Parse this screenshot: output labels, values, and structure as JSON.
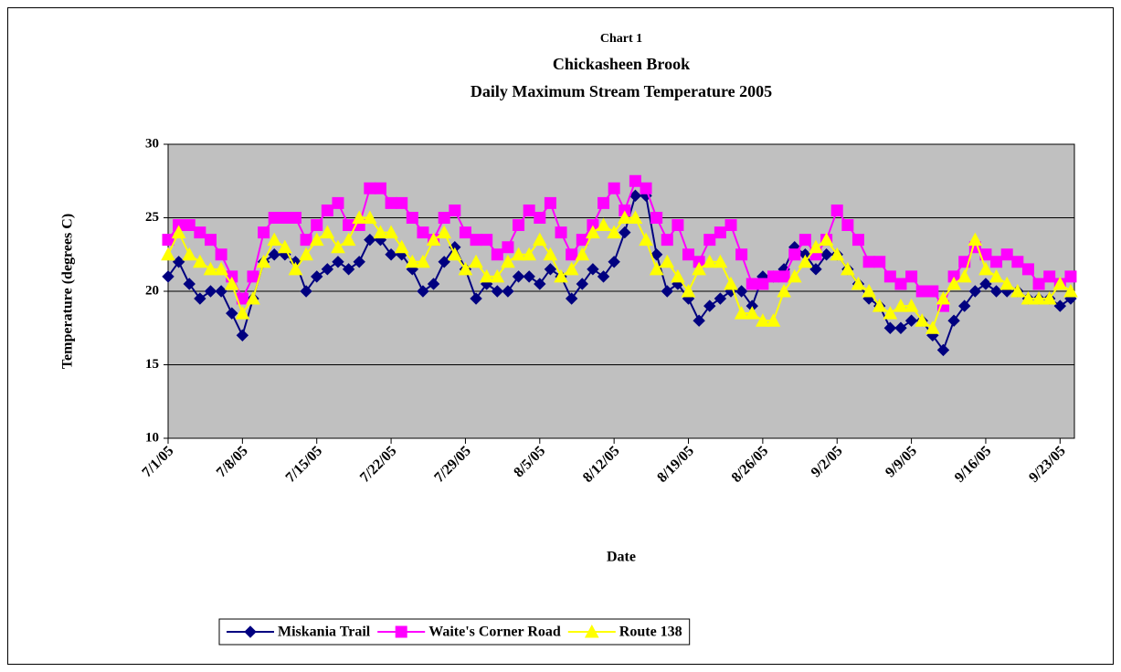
{
  "chart_data": {
    "type": "line",
    "title": "Chart 1",
    "subtitle": "Chickasheen Brook",
    "subtitle2": "Daily Maximum Stream Temperature 2005",
    "x_label": "Date",
    "y_label": "Temperature (degrees C)",
    "categories": [
      "7/1/05",
      null,
      null,
      null,
      null,
      null,
      null,
      "7/8/05",
      null,
      null,
      null,
      null,
      null,
      null,
      "7/15/05",
      null,
      null,
      null,
      null,
      null,
      null,
      "7/22/05",
      null,
      null,
      null,
      null,
      null,
      null,
      "7/29/05",
      null,
      null,
      null,
      null,
      null,
      null,
      "8/5/05",
      null,
      null,
      null,
      null,
      null,
      null,
      "8/12/05",
      null,
      null,
      null,
      null,
      null,
      null,
      "8/19/05",
      null,
      null,
      null,
      null,
      null,
      null,
      "8/26/05",
      null,
      null,
      null,
      null,
      null,
      null,
      "9/2/05",
      null,
      null,
      null,
      null,
      null,
      null,
      "9/9/05",
      null,
      null,
      null,
      null,
      null,
      null,
      "9/16/05",
      null,
      null,
      null,
      null,
      null,
      null,
      "9/23/05",
      null
    ],
    "series": [
      {
        "name": "Miskania Trail",
        "color": "#000080",
        "marker": "diamond",
        "values": [
          21,
          22,
          20.5,
          19.5,
          20,
          20,
          18.5,
          17,
          19.5,
          22,
          22.5,
          22.5,
          22,
          20,
          21,
          21.5,
          22,
          21.5,
          22,
          23.5,
          23.5,
          22.5,
          22.5,
          21.5,
          20,
          20.5,
          22,
          23,
          21.5,
          19.5,
          20.5,
          20,
          20,
          21,
          21,
          20.5,
          21.5,
          21,
          19.5,
          20.5,
          21.5,
          21,
          22,
          24,
          26.5,
          26.5,
          22.5,
          20,
          20.5,
          19.5,
          18,
          19,
          19.5,
          20,
          20,
          19,
          21,
          21,
          21.5,
          23,
          22.5,
          21.5,
          22.5,
          22.5,
          21.5,
          20.5,
          19.5,
          19,
          17.5,
          17.5,
          18,
          18,
          17,
          16,
          18,
          19,
          20,
          20.5,
          20,
          20,
          20,
          19.5,
          19.5,
          19.5,
          19,
          19.5
        ]
      },
      {
        "name": "Waite's Corner Road",
        "color": "#ff00ff",
        "marker": "square",
        "values": [
          23.5,
          24.5,
          24.5,
          24,
          23.5,
          22.5,
          21,
          19.5,
          21,
          24,
          25,
          25,
          25,
          23.5,
          24.5,
          25.5,
          26,
          24.5,
          24.5,
          27,
          27,
          26,
          26,
          25,
          24,
          23.5,
          25,
          25.5,
          24,
          23.5,
          23.5,
          22.5,
          23,
          24.5,
          25.5,
          25,
          26,
          24,
          22.5,
          23.5,
          24.5,
          26,
          27,
          25.5,
          27.5,
          27,
          25,
          23.5,
          24.5,
          22.5,
          22,
          23.5,
          24,
          24.5,
          22.5,
          20.5,
          20.5,
          21,
          21,
          22.5,
          23.5,
          22.5,
          23.5,
          25.5,
          24.5,
          23.5,
          22,
          22,
          21,
          20.5,
          21,
          20,
          20,
          19,
          21,
          22,
          23,
          22.5,
          22,
          22.5,
          22,
          21.5,
          20.5,
          21,
          20.5,
          21
        ]
      },
      {
        "name": "Route 138",
        "color": "#ffff00",
        "marker": "triangle",
        "values": [
          22.5,
          24,
          22.5,
          22,
          21.5,
          21.5,
          20.5,
          18.5,
          19.5,
          22,
          23.5,
          23,
          21.5,
          22.5,
          23.5,
          24,
          23,
          23.5,
          25,
          25,
          24,
          24,
          23,
          22,
          22,
          23.5,
          24,
          22.5,
          21.5,
          22,
          21,
          21,
          22,
          22.5,
          22.5,
          23.5,
          22.5,
          21,
          21.5,
          22.5,
          24,
          24.5,
          24,
          25,
          25,
          23.5,
          21.5,
          22,
          21,
          20,
          21.5,
          22,
          22,
          20.5,
          18.5,
          18.5,
          18,
          18,
          20,
          21,
          22,
          23,
          23.5,
          22.5,
          21.5,
          20.5,
          20,
          19,
          18.5,
          19,
          19,
          18,
          17.5,
          19.5,
          20.5,
          21,
          23.5,
          21.5,
          21,
          20.5,
          20,
          19.5,
          19.5,
          19.5,
          20.5,
          20
        ]
      }
    ],
    "ylim": [
      10,
      30
    ],
    "yticks": [
      10,
      15,
      20,
      25,
      30
    ],
    "grid": true,
    "plot_background": "#c0c0c0",
    "legend": "bottom"
  }
}
